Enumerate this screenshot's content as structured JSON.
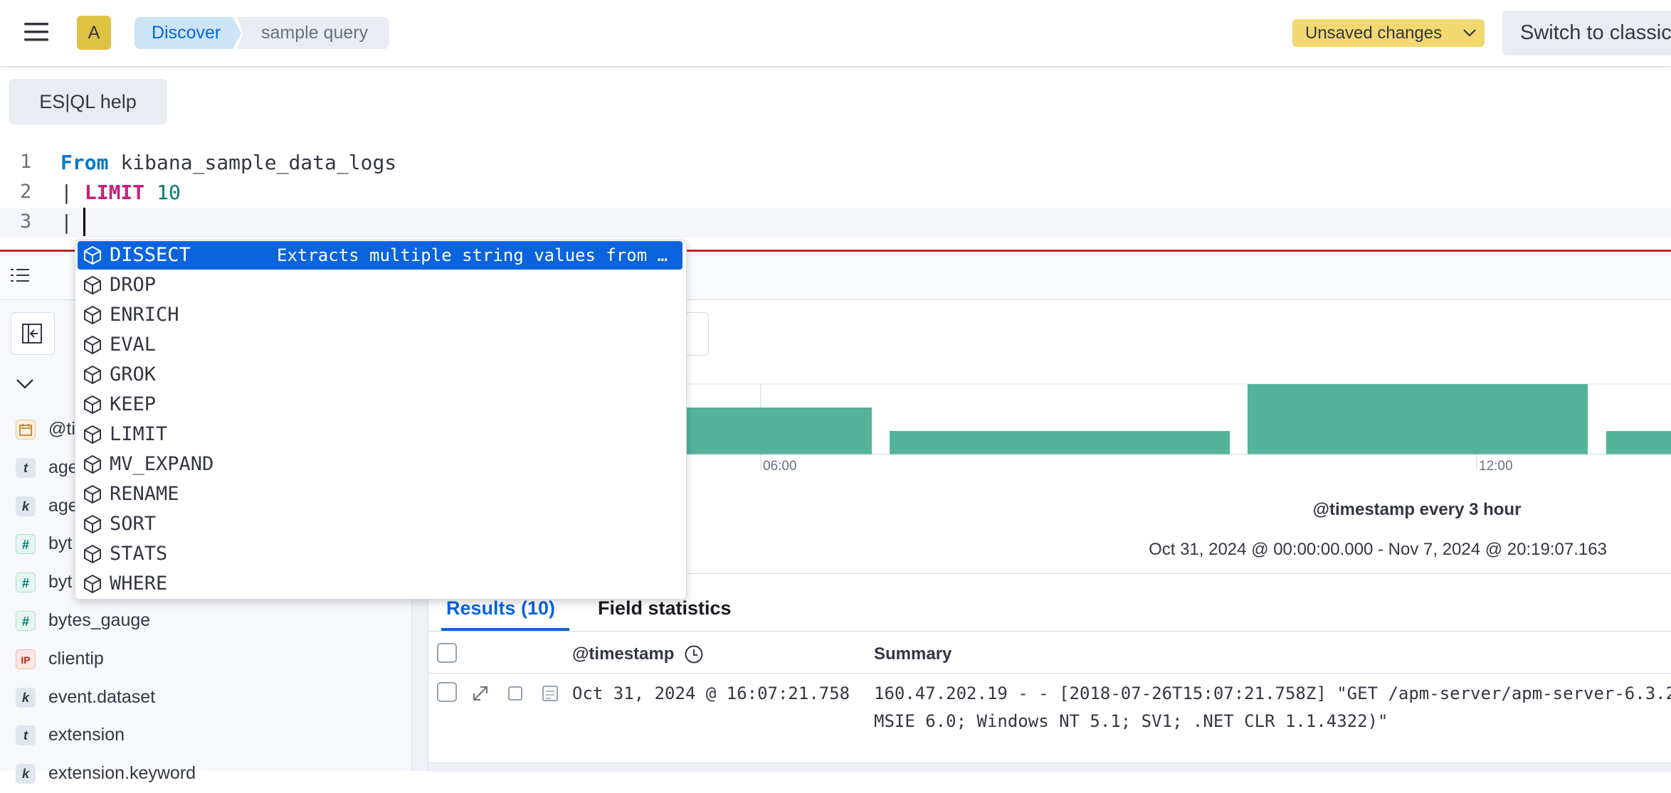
{
  "header": {
    "avatar": "A",
    "breadcrumbs": [
      "Discover",
      "sample query"
    ],
    "unsaved_changes": "Unsaved changes",
    "switch_button": "Switch to classic"
  },
  "editor": {
    "help_button": "ES|QL help",
    "lines": [
      {
        "number": 1,
        "tokens": [
          {
            "text": "From",
            "kind": "keyword"
          },
          {
            "text": "kibana_sample_data_logs",
            "kind": "plain"
          }
        ]
      },
      {
        "number": 2,
        "tokens": [
          {
            "text": "|",
            "kind": "pipe"
          },
          {
            "text": "LIMIT",
            "kind": "command"
          },
          {
            "text": "10",
            "kind": "number"
          }
        ]
      },
      {
        "number": 3,
        "tokens": [
          {
            "text": "|",
            "kind": "pipe"
          }
        ]
      }
    ]
  },
  "autocomplete": {
    "items": [
      {
        "label": "DISSECT",
        "description": "Extracts multiple string values from …"
      },
      {
        "label": "DROP"
      },
      {
        "label": "ENRICH"
      },
      {
        "label": "EVAL"
      },
      {
        "label": "GROK"
      },
      {
        "label": "KEEP"
      },
      {
        "label": "LIMIT"
      },
      {
        "label": "MV_EXPAND"
      },
      {
        "label": "RENAME"
      },
      {
        "label": "SORT"
      },
      {
        "label": "STATS"
      },
      {
        "label": "WHERE"
      }
    ]
  },
  "sidebar": {
    "fields": [
      {
        "type": "date",
        "name": "@ti"
      },
      {
        "type": "text",
        "icon": "t",
        "name": "age"
      },
      {
        "type": "keyword",
        "icon": "k",
        "name": "age"
      },
      {
        "type": "number",
        "icon": "#",
        "name": "byt"
      },
      {
        "type": "number",
        "icon": "#",
        "name": "byt"
      },
      {
        "type": "number",
        "icon": "#",
        "name": "bytes_gauge"
      },
      {
        "type": "ip",
        "icon": "IP",
        "name": "clientip"
      },
      {
        "type": "keyword",
        "icon": "k",
        "name": "event.dataset"
      },
      {
        "type": "text",
        "icon": "t",
        "name": "extension"
      },
      {
        "type": "keyword",
        "icon": "k",
        "name": "extension.keyword"
      }
    ]
  },
  "histogram": {
    "x_tick_labels": [
      "06:00",
      "12:00"
    ],
    "interval_label": "@timestamp every 3 hour",
    "time_range": "Oct 31, 2024 @ 00:00:00.000 - Nov 7, 2024 @ 20:19:07.163"
  },
  "tabs": [
    "Results (10)",
    "Field statistics"
  ],
  "table": {
    "columns": [
      "@timestamp",
      "Summary"
    ],
    "rows": [
      [
        "Oct 31, 2024 @ 16:07:21.758",
        [
          "160.47.202.19 - - [2018-07-26T15:07:21.758Z] \"GET /apm-server/apm-server-6.3.2",
          "MSIE 6.0; Windows NT 5.1; SV1; .NET CLR 1.1.4322)\""
        ]
      ]
    ]
  }
}
